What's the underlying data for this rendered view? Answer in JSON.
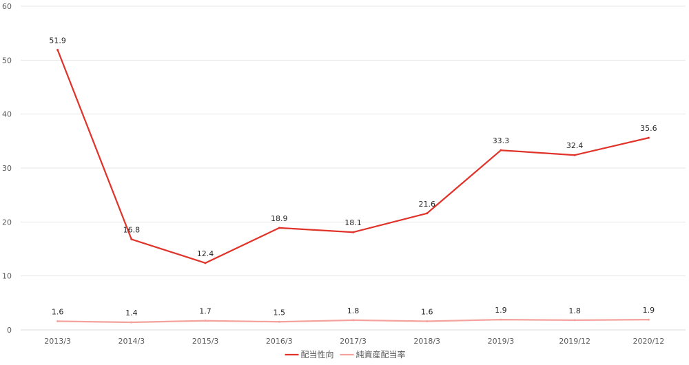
{
  "chart_data": {
    "type": "line",
    "title": "",
    "xlabel": "",
    "ylabel": "",
    "categories": [
      "2013/3",
      "2014/3",
      "2015/3",
      "2016/3",
      "2017/3",
      "2018/3",
      "2019/3",
      "2019/12",
      "2020/12"
    ],
    "ylim": [
      0,
      60
    ],
    "yticks": [
      0,
      10,
      20,
      30,
      40,
      50,
      60
    ],
    "grid": true,
    "legend_position": "bottom",
    "series": [
      {
        "name": "配当性向",
        "color": "#e0332a",
        "values": [
          51.9,
          16.8,
          12.4,
          18.9,
          18.1,
          21.6,
          33.3,
          32.4,
          35.6
        ],
        "labels": [
          "51.9",
          "16.8",
          "12.4",
          "18.9",
          "18.1",
          "21.6",
          "33.3",
          "32.4",
          "35.6"
        ]
      },
      {
        "name": "純資産配当率",
        "color": "#f4a29c",
        "values": [
          1.6,
          1.4,
          1.7,
          1.5,
          1.8,
          1.6,
          1.9,
          1.8,
          1.9
        ],
        "labels": [
          "1.6",
          "1.4",
          "1.7",
          "1.5",
          "1.8",
          "1.6",
          "1.9",
          "1.8",
          "1.9"
        ]
      }
    ]
  }
}
